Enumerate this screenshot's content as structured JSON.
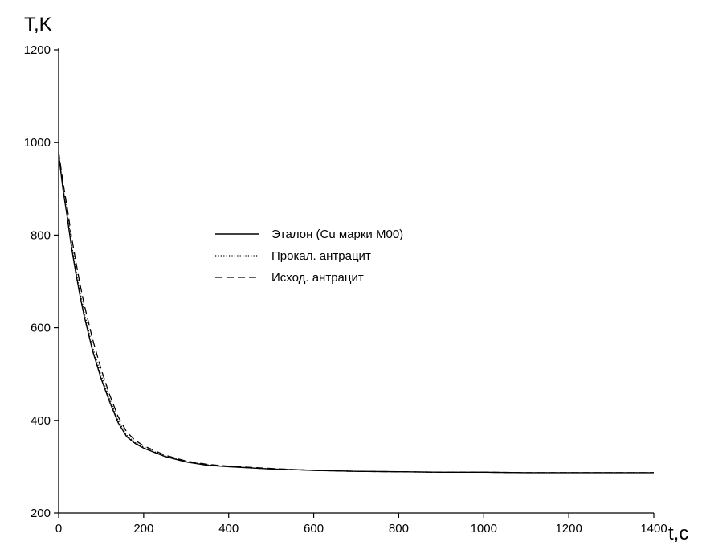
{
  "chart_data": {
    "type": "line",
    "xlabel": "t,c",
    "ylabel": "T,K",
    "xlim": [
      0,
      1400
    ],
    "ylim": [
      200,
      1200
    ],
    "xticks": [
      0,
      200,
      400,
      600,
      800,
      1000,
      1200,
      1400
    ],
    "yticks": [
      200,
      400,
      600,
      800,
      1000,
      1200
    ],
    "grid": false,
    "legend_position": "center",
    "series": [
      {
        "name": "Эталон (Cu марки М00)",
        "style": "solid",
        "x": [
          0,
          10,
          20,
          30,
          40,
          50,
          60,
          80,
          100,
          120,
          140,
          160,
          180,
          200,
          250,
          300,
          350,
          400,
          500,
          600,
          700,
          800,
          900,
          1000,
          1100,
          1200,
          1300,
          1400
        ],
        "y": [
          975,
          900,
          840,
          775,
          720,
          670,
          625,
          550,
          490,
          440,
          395,
          365,
          350,
          340,
          322,
          310,
          303,
          300,
          295,
          292,
          290,
          289,
          288,
          288,
          287,
          287,
          287,
          287
        ]
      },
      {
        "name": "Прокал. антрацит",
        "style": "dotted",
        "x": [
          0,
          10,
          20,
          30,
          40,
          50,
          60,
          80,
          100,
          120,
          140,
          160,
          180,
          200,
          250,
          300,
          350,
          400,
          500,
          600,
          700,
          800,
          900,
          1000,
          1100,
          1200,
          1300,
          1400
        ],
        "y": [
          978,
          905,
          848,
          782,
          728,
          678,
          633,
          558,
          497,
          446,
          400,
          368,
          352,
          342,
          323,
          311,
          304,
          300,
          295,
          292,
          290,
          289,
          288,
          288,
          287,
          287,
          287,
          287
        ]
      },
      {
        "name": "Исход. антрацит",
        "style": "dashed",
        "x": [
          0,
          10,
          20,
          30,
          40,
          50,
          60,
          80,
          100,
          120,
          140,
          160,
          180,
          200,
          250,
          300,
          350,
          400,
          500,
          600,
          700,
          800,
          900,
          1000,
          1100,
          1200,
          1300,
          1400
        ],
        "y": [
          980,
          915,
          860,
          798,
          745,
          695,
          650,
          575,
          510,
          455,
          408,
          375,
          357,
          345,
          325,
          312,
          305,
          301,
          296,
          292,
          290,
          289,
          288,
          288,
          287,
          287,
          287,
          287
        ]
      }
    ]
  }
}
